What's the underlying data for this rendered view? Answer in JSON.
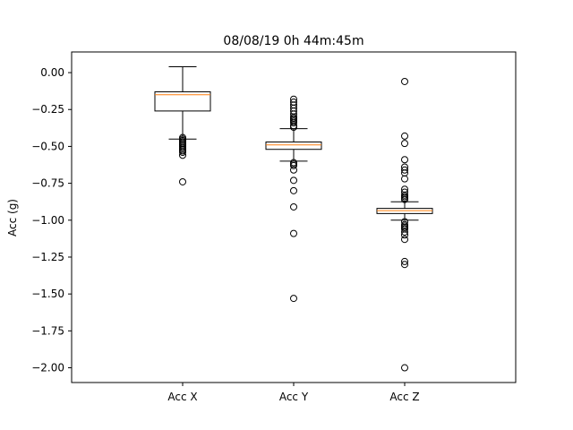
{
  "chart_data": {
    "type": "box",
    "title": "08/08/19 0h 44m:45m",
    "xlabel": "",
    "ylabel": "Acc (g)",
    "ylim": [
      -2.1,
      0.14
    ],
    "yticks": [
      0.0,
      -0.25,
      -0.5,
      -0.75,
      -1.0,
      -1.25,
      -1.5,
      -1.75,
      -2.0
    ],
    "ytick_labels": [
      "0.00",
      "−0.25",
      "−0.50",
      "−0.75",
      "−1.00",
      "−1.25",
      "−1.50",
      "−1.75",
      "−2.00"
    ],
    "grid": false,
    "colors": {
      "box": "#000000",
      "median": "#ff7f0e",
      "flier": "#000000"
    },
    "categories": [
      "Acc X",
      "Acc Y",
      "Acc Z"
    ],
    "series": [
      {
        "whisker_low": -0.45,
        "q1": -0.26,
        "median": -0.15,
        "q3": -0.13,
        "whisker_high": 0.04,
        "fliers": [
          -0.44,
          -0.45,
          -0.46,
          -0.47,
          -0.48,
          -0.49,
          -0.5,
          -0.51,
          -0.52,
          -0.53,
          -0.54,
          -0.56,
          -0.74
        ]
      },
      {
        "whisker_low": -0.6,
        "q1": -0.52,
        "median": -0.49,
        "q3": -0.47,
        "whisker_high": -0.38,
        "fliers": [
          -0.18,
          -0.2,
          -0.22,
          -0.24,
          -0.26,
          -0.28,
          -0.3,
          -0.31,
          -0.32,
          -0.33,
          -0.34,
          -0.36,
          -0.37,
          -0.61,
          -0.62,
          -0.63,
          -0.66,
          -0.73,
          -0.8,
          -0.91,
          -1.09,
          -1.53
        ]
      },
      {
        "whisker_low": -1.0,
        "q1": -0.955,
        "median": -0.935,
        "q3": -0.92,
        "whisker_high": -0.875,
        "fliers": [
          -0.06,
          -0.43,
          -0.48,
          -0.59,
          -0.64,
          -0.66,
          -0.68,
          -0.72,
          -0.79,
          -0.81,
          -0.83,
          -0.84,
          -0.85,
          -0.86,
          -1.01,
          -1.03,
          -1.04,
          -1.05,
          -1.06,
          -1.08,
          -1.1,
          -1.13,
          -1.28,
          -1.3,
          -2.0
        ]
      }
    ]
  }
}
